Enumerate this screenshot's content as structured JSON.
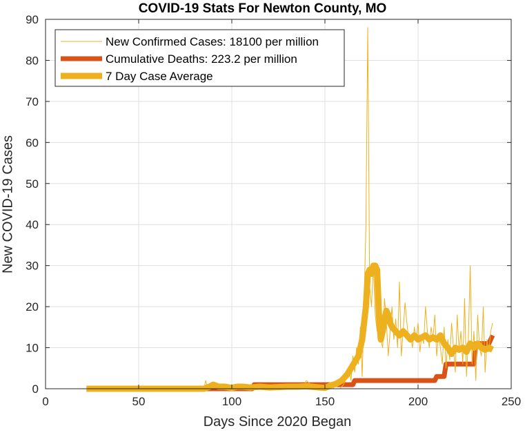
{
  "chart_data": {
    "type": "line",
    "title": "COVID-19 Stats For Newton County, MO",
    "xlabel": "Days Since 2020 Began",
    "ylabel": "New COVID-19 Cases",
    "xlim": [
      0,
      250
    ],
    "ylim": [
      0,
      90
    ],
    "xticks": [
      0,
      50,
      100,
      150,
      200,
      250
    ],
    "yticks": [
      0,
      10,
      20,
      30,
      40,
      50,
      60,
      70,
      80,
      90
    ],
    "grid": true,
    "legend_position": "top-left",
    "series": [
      {
        "name": "New Confirmed Cases: 18100 per million",
        "color": "#EDB120",
        "style": "thin",
        "x": [
          22,
          60,
          85,
          86,
          87,
          88,
          90,
          95,
          100,
          105,
          108,
          110,
          112,
          115,
          118,
          120,
          125,
          130,
          135,
          138,
          140,
          145,
          150,
          152,
          155,
          158,
          160,
          162,
          163,
          164,
          165,
          166,
          167,
          168,
          169,
          170,
          171,
          172,
          173,
          174,
          175,
          176,
          177,
          178,
          179,
          180,
          181,
          182,
          183,
          184,
          185,
          186,
          187,
          188,
          189,
          190,
          191,
          192,
          193,
          194,
          195,
          196,
          197,
          198,
          199,
          200,
          201,
          202,
          203,
          204,
          205,
          206,
          207,
          208,
          209,
          210,
          211,
          212,
          213,
          214,
          215,
          216,
          217,
          218,
          219,
          220,
          221,
          222,
          223,
          224,
          225,
          226,
          227,
          228,
          229,
          230,
          231,
          232,
          233,
          234,
          235,
          236,
          237,
          238,
          239,
          240
        ],
        "y": [
          0,
          0,
          0,
          2,
          0,
          0,
          0,
          1,
          0,
          1,
          0,
          0,
          1,
          0,
          0,
          1,
          0,
          1,
          0,
          0,
          2,
          0,
          0,
          1,
          0,
          0,
          1,
          3,
          5,
          2,
          8,
          4,
          10,
          6,
          15,
          3,
          20,
          40,
          88,
          25,
          20,
          30,
          18,
          14,
          28,
          12,
          10,
          22,
          16,
          8,
          14,
          20,
          12,
          17,
          10,
          26,
          8,
          14,
          21,
          16,
          12,
          13,
          10,
          15,
          12,
          16,
          9,
          13,
          11,
          20,
          14,
          10,
          15,
          12,
          18,
          8,
          13,
          10,
          6,
          15,
          5,
          12,
          7,
          16,
          10,
          4,
          18,
          9,
          14,
          6,
          22,
          3,
          12,
          30,
          6,
          14,
          2,
          18,
          10,
          8,
          20,
          4,
          12,
          9,
          14,
          16
        ]
      },
      {
        "name": "Cumulative Deaths: 223.2 per million",
        "color": "#D95319",
        "style": "thick",
        "x": [
          22,
          111,
          112,
          155,
          156,
          165,
          166,
          209,
          210,
          214,
          215,
          230,
          231,
          238,
          239,
          240
        ],
        "y": [
          0,
          0,
          1,
          1,
          1,
          1,
          2,
          2,
          3,
          3,
          6,
          6,
          11,
          11,
          12,
          13
        ]
      },
      {
        "name": "7 Day Case Average",
        "color": "#EDB120",
        "style": "thickest",
        "x": [
          22,
          60,
          85,
          88,
          90,
          93,
          96,
          100,
          103,
          106,
          110,
          115,
          120,
          125,
          130,
          135,
          140,
          145,
          150,
          153,
          156,
          159,
          162,
          164,
          166,
          168,
          170,
          172,
          173,
          174,
          175,
          176,
          177,
          178,
          179,
          180,
          181,
          182,
          183,
          184,
          185,
          186,
          188,
          190,
          192,
          194,
          196,
          198,
          200,
          202,
          204,
          206,
          208,
          210,
          212,
          214,
          216,
          218,
          220,
          222,
          224,
          226,
          228,
          230,
          232,
          234,
          236,
          238,
          240
        ],
        "y": [
          0,
          0,
          0,
          0.5,
          1,
          0.5,
          0.5,
          0.2,
          0.5,
          0.5,
          0.3,
          0.5,
          0.3,
          0.4,
          0.5,
          0.5,
          0.6,
          0.4,
          0.2,
          0.8,
          1.2,
          2,
          3.5,
          5,
          6.5,
          8,
          12,
          20,
          28,
          29,
          28,
          30,
          30,
          29,
          18,
          12,
          14,
          17,
          19,
          18,
          16,
          15,
          14,
          13,
          14,
          13,
          12,
          13,
          12,
          12.5,
          13,
          12,
          12.5,
          12,
          13,
          11,
          10,
          8.5,
          10,
          9.5,
          10,
          9,
          11,
          10,
          11,
          10,
          9.5,
          10,
          9.5
        ]
      }
    ]
  }
}
